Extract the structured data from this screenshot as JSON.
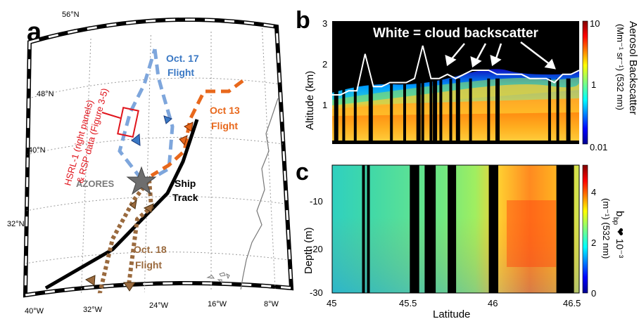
{
  "panel_a": {
    "letter": "a",
    "lat_labels": [
      "56°N",
      "48°N",
      "40°N",
      "32°N"
    ],
    "lon_labels": [
      "40°W",
      "32°W",
      "24°W",
      "16°W",
      "8°W"
    ],
    "labels": {
      "azores": "AZORES",
      "ship_track": [
        "Ship",
        "Track"
      ],
      "oct17": [
        "Oct. 17",
        "Flight"
      ],
      "oct13": [
        "Oct 13",
        "Flight"
      ],
      "oct18": [
        "Oct. 18",
        "Flight"
      ],
      "hsrl": [
        "HSRL-1 (right panels)",
        "& RSP data (Figure 3-5)"
      ]
    },
    "colors": {
      "oct17": "#7ea6dc",
      "oct13": "#e8681c",
      "oct18": "#9a6a3e",
      "ship": "#000000",
      "hsrl": "#e0141c",
      "azores_star": "#6e6e6e",
      "oct17_text": "#3a78c4",
      "oct13_text": "#e8681c",
      "oct18_text": "#9a6a3e",
      "azores_text": "#7a7a7a"
    }
  },
  "panel_b": {
    "letter": "b",
    "annotation": "White = cloud backscatter",
    "ylabel": "Altitude (km)",
    "yticks": [
      "1",
      "2",
      "3"
    ],
    "colorbar_ticks": [
      "10",
      "1",
      "0.01"
    ],
    "colorbar_label": [
      "Aerosol Backscatter",
      "(Mm⁻¹ sr⁻¹) (532 nm)"
    ],
    "colormap": "jet"
  },
  "panel_c": {
    "letter": "c",
    "ylabel": "Depth (m)",
    "yticks": [
      "-10",
      "-20",
      "-30"
    ],
    "xlabel": "Latitude",
    "xticks": [
      "45",
      "45.5",
      "46",
      "46.5"
    ],
    "colorbar_ticks": [
      "4",
      "2",
      "0"
    ],
    "colorbar_label": [
      "b",
      "bp",
      " ❤ 10⁻³",
      "(m⁻¹) (532 nm)"
    ],
    "colormap": "jet"
  },
  "chart_data": [
    {
      "type": "heatmap",
      "title": "",
      "ylabel": "Altitude (km)",
      "xlabel": "Latitude",
      "xlim": [
        45,
        46.5
      ],
      "ylim": [
        0,
        3
      ],
      "color_scale": "log",
      "color_range": [
        0.01,
        10
      ],
      "colorbar_label": "Aerosol Backscatter (Mm-1 sr-1) (532 nm)",
      "cloud_top_profile": {
        "lat": [
          45.0,
          45.05,
          45.1,
          45.15,
          45.2,
          45.25,
          45.3,
          45.35,
          45.4,
          45.45,
          45.5,
          45.55,
          45.6,
          45.65,
          45.7,
          45.75,
          45.8,
          45.85,
          45.9,
          45.95,
          46.0,
          46.05,
          46.1,
          46.15,
          46.2,
          46.25,
          46.3,
          46.35,
          46.4,
          46.45,
          46.5
        ],
        "alt_km": [
          1.2,
          1.2,
          1.3,
          1.3,
          2.2,
          1.4,
          1.4,
          1.5,
          1.5,
          1.5,
          1.6,
          2.4,
          1.6,
          1.6,
          1.7,
          1.6,
          1.7,
          1.8,
          1.8,
          1.8,
          1.7,
          1.7,
          1.7,
          1.7,
          1.6,
          1.6,
          1.6,
          1.5,
          1.7,
          1.7,
          1.8
        ]
      },
      "black_gap_lat": [
        45.02,
        45.07,
        45.14,
        45.23,
        45.36,
        45.44,
        45.52,
        45.55,
        45.6,
        45.62,
        45.66,
        45.72,
        45.76,
        45.84,
        45.95,
        46.0,
        46.32,
        46.37,
        46.43
      ],
      "annotation": "White = cloud backscatter"
    },
    {
      "type": "heatmap",
      "title": "",
      "ylabel": "Depth (m)",
      "xlabel": "Latitude",
      "xlim": [
        45,
        46.5
      ],
      "ylim": [
        -30,
        -2
      ],
      "color_range": [
        0,
        5
      ],
      "colorbar_label": "bbp × 10^-3 (m-1) (532 nm)",
      "column_mean_bbp": {
        "lat": [
          45.0,
          45.1,
          45.2,
          45.3,
          45.4,
          45.5,
          45.6,
          45.7,
          45.8,
          45.9,
          46.0,
          46.1,
          46.2,
          46.3,
          46.4,
          46.5
        ],
        "value": [
          1.8,
          1.9,
          2.0,
          2.2,
          2.2,
          2.1,
          2.4,
          2.5,
          2.4,
          2.4,
          3.2,
          3.6,
          3.8,
          3.5,
          3.3,
          2.5
        ]
      },
      "black_gap_lat": [
        45.19,
        45.22,
        45.48,
        45.52,
        45.57,
        45.6,
        45.62,
        45.71,
        45.96,
        46.0,
        46.37,
        46.41,
        46.46
      ]
    }
  ]
}
